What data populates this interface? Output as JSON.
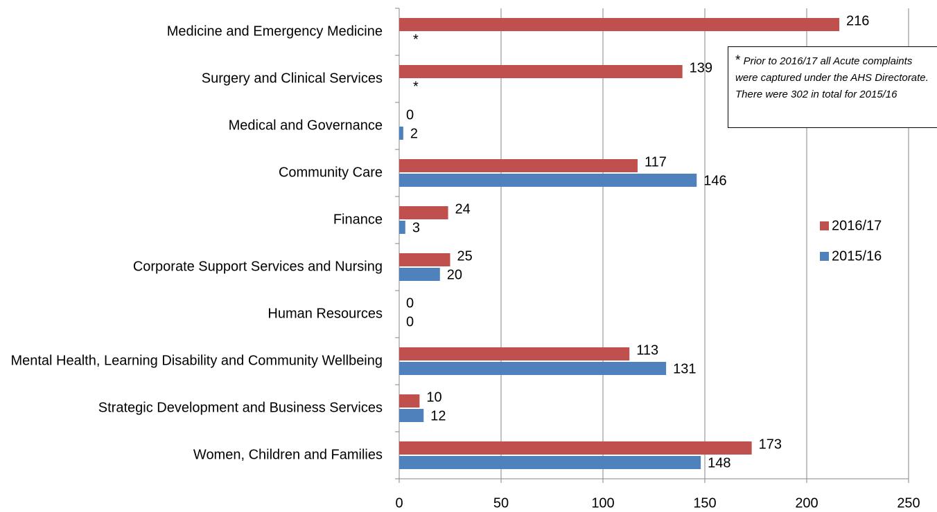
{
  "chart_data": {
    "type": "hbar",
    "categories": [
      "Medicine and Emergency Medicine",
      "Surgery and Clinical Services",
      "Medical and Governance",
      "Community Care",
      "Finance",
      "Corporate Support Services and Nursing",
      "Human Resources",
      "Mental Health, Learning Disability and Community Wellbeing",
      "Strategic Development and Business Services",
      "Women, Children and Families"
    ],
    "series": [
      {
        "name": "2016/17",
        "color": "#c0504d",
        "values": [
          216,
          139,
          0,
          117,
          24,
          25,
          0,
          113,
          10,
          173
        ]
      },
      {
        "name": "2015/16",
        "color": "#4f81bd",
        "values": [
          null,
          null,
          2,
          146,
          3,
          20,
          0,
          131,
          12,
          148
        ],
        "value_labels": [
          "*",
          "*",
          "2",
          "146",
          "3",
          "20",
          "0",
          "131",
          "12",
          "148"
        ]
      }
    ],
    "xlim": [
      0,
      250
    ],
    "xticks": [
      0,
      50,
      100,
      150,
      200,
      250
    ],
    "grid": true,
    "legend": "right",
    "annotation": {
      "marker": "*",
      "text": "Prior to 2016/17 all Acute complaints were captured under the AHS Directorate.  There were 302 in total for 2015/16"
    }
  }
}
